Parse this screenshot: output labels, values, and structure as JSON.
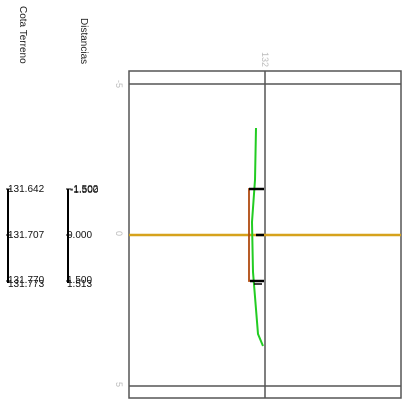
{
  "columns": {
    "terrain_title": "Cota Terreno",
    "distance_title": "Distancias"
  },
  "terrain_values": [
    "131.642",
    "131.707",
    "131.770",
    "131.773"
  ],
  "distance_values": [
    "-1.502",
    "-1.500",
    "0.000",
    "1.500",
    "1.513"
  ],
  "axis_labels": {
    "top": "132",
    "left_upper": "-5",
    "left_middle": "0",
    "left_lower": "5"
  },
  "colors": {
    "frame": "#555555",
    "axis": "#d6a21c",
    "terrain_line": "#22cc22",
    "section": "#b04a10",
    "marker": "#000000"
  }
}
